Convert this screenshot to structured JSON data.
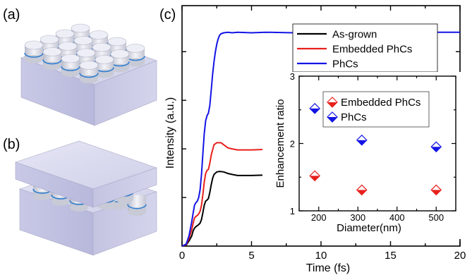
{
  "panel_labels": {
    "a": "(a)",
    "b": "(b)",
    "c": "(c)"
  },
  "colors": {
    "as_grown": "#000000",
    "embedded": "#e8201c",
    "phcs": "#1414e6",
    "slab_top": "#dcdcf0",
    "slab_side": "#b4b4d8",
    "rod": "#e8e8f4",
    "rod_ring": "#2f7fd0"
  },
  "chart_data": [
    {
      "type": "line",
      "xlabel": "Time (fs)",
      "ylabel": "Intensity (a.u.)",
      "xlim": [
        0,
        20
      ],
      "ylim": [
        0,
        4.7
      ],
      "xticks": [
        0,
        5,
        10,
        15,
        20
      ],
      "xtick_labels": [
        "0",
        "5",
        "10",
        "15",
        "20"
      ],
      "legend_position": "top-right",
      "series": [
        {
          "name": "As-grown",
          "color": "#000000",
          "x": [
            0,
            0.3,
            0.5,
            0.7,
            0.8,
            0.9,
            1.0,
            1.1,
            1.2,
            1.3,
            1.4,
            1.5,
            1.6,
            1.7,
            1.8,
            1.9,
            2.0,
            2.1,
            2.2,
            2.3,
            2.5,
            2.7,
            3.0,
            3.3,
            3.6,
            4.0,
            5,
            6,
            8,
            10,
            12,
            15,
            18,
            20
          ],
          "y": [
            0,
            0.02,
            0.1,
            0.2,
            0.3,
            0.35,
            0.38,
            0.4,
            0.42,
            0.45,
            0.52,
            0.65,
            0.8,
            0.88,
            0.9,
            0.93,
            1.05,
            1.2,
            1.32,
            1.4,
            1.45,
            1.46,
            1.45,
            1.42,
            1.4,
            1.38,
            1.38,
            1.39,
            1.38,
            1.39,
            1.38,
            1.39,
            1.39,
            1.38
          ]
        },
        {
          "name": "Embedded PhCs",
          "color": "#e8201c",
          "x": [
            0,
            0.3,
            0.5,
            0.7,
            0.8,
            0.9,
            1.0,
            1.1,
            1.2,
            1.3,
            1.4,
            1.5,
            1.6,
            1.7,
            1.8,
            1.9,
            2.0,
            2.1,
            2.3,
            2.5,
            2.8,
            3.0,
            3.3,
            3.6,
            4.0,
            5,
            6,
            8,
            10,
            12,
            15,
            18,
            20
          ],
          "y": [
            0,
            0.03,
            0.15,
            0.32,
            0.45,
            0.55,
            0.58,
            0.6,
            0.63,
            0.68,
            0.8,
            1.0,
            1.25,
            1.42,
            1.48,
            1.5,
            1.62,
            1.78,
            1.98,
            2.02,
            2.02,
            1.98,
            1.92,
            1.9,
            1.88,
            1.88,
            1.89,
            1.88,
            1.88,
            1.89,
            1.88,
            1.88,
            1.88
          ]
        },
        {
          "name": "PhCs",
          "color": "#1414e6",
          "x": [
            0,
            0.3,
            0.5,
            0.7,
            0.8,
            0.9,
            1.0,
            1.1,
            1.2,
            1.3,
            1.4,
            1.5,
            1.6,
            1.7,
            1.8,
            1.9,
            2.0,
            2.1,
            2.2,
            2.3,
            2.4,
            2.5,
            2.6,
            2.7,
            2.8,
            3.0,
            3.3,
            3.6,
            4.0,
            5,
            6,
            8,
            10,
            12,
            15,
            18,
            20
          ],
          "y": [
            0,
            0.04,
            0.2,
            0.48,
            0.65,
            0.8,
            0.85,
            0.88,
            0.95,
            1.1,
            1.4,
            1.8,
            2.2,
            2.45,
            2.55,
            2.6,
            2.75,
            3.05,
            3.35,
            3.6,
            3.8,
            3.95,
            4.05,
            4.12,
            4.15,
            4.17,
            4.18,
            4.17,
            4.18,
            4.17,
            4.18,
            4.17,
            4.18,
            4.18,
            4.17,
            4.18,
            4.18
          ]
        }
      ]
    },
    {
      "type": "scatter",
      "xlabel": "Diameter(nm)",
      "ylabel": "Enhancement ratio",
      "xlim": [
        150,
        550
      ],
      "ylim": [
        1,
        3
      ],
      "xticks": [
        200,
        300,
        400,
        500
      ],
      "yticks": [
        1,
        2,
        3
      ],
      "xtick_labels": [
        "200",
        "300",
        "400",
        "500"
      ],
      "ytick_labels": [
        "1",
        "2",
        "3"
      ],
      "legend_position": "top-right",
      "series": [
        {
          "name": "Embedded PhCs",
          "color": "#e8201c",
          "x": [
            190,
            310,
            500
          ],
          "y": [
            1.52,
            1.31,
            1.31
          ]
        },
        {
          "name": "PhCs",
          "color": "#1414e6",
          "x": [
            190,
            310,
            500
          ],
          "y": [
            2.52,
            2.05,
            1.95
          ]
        }
      ]
    }
  ]
}
